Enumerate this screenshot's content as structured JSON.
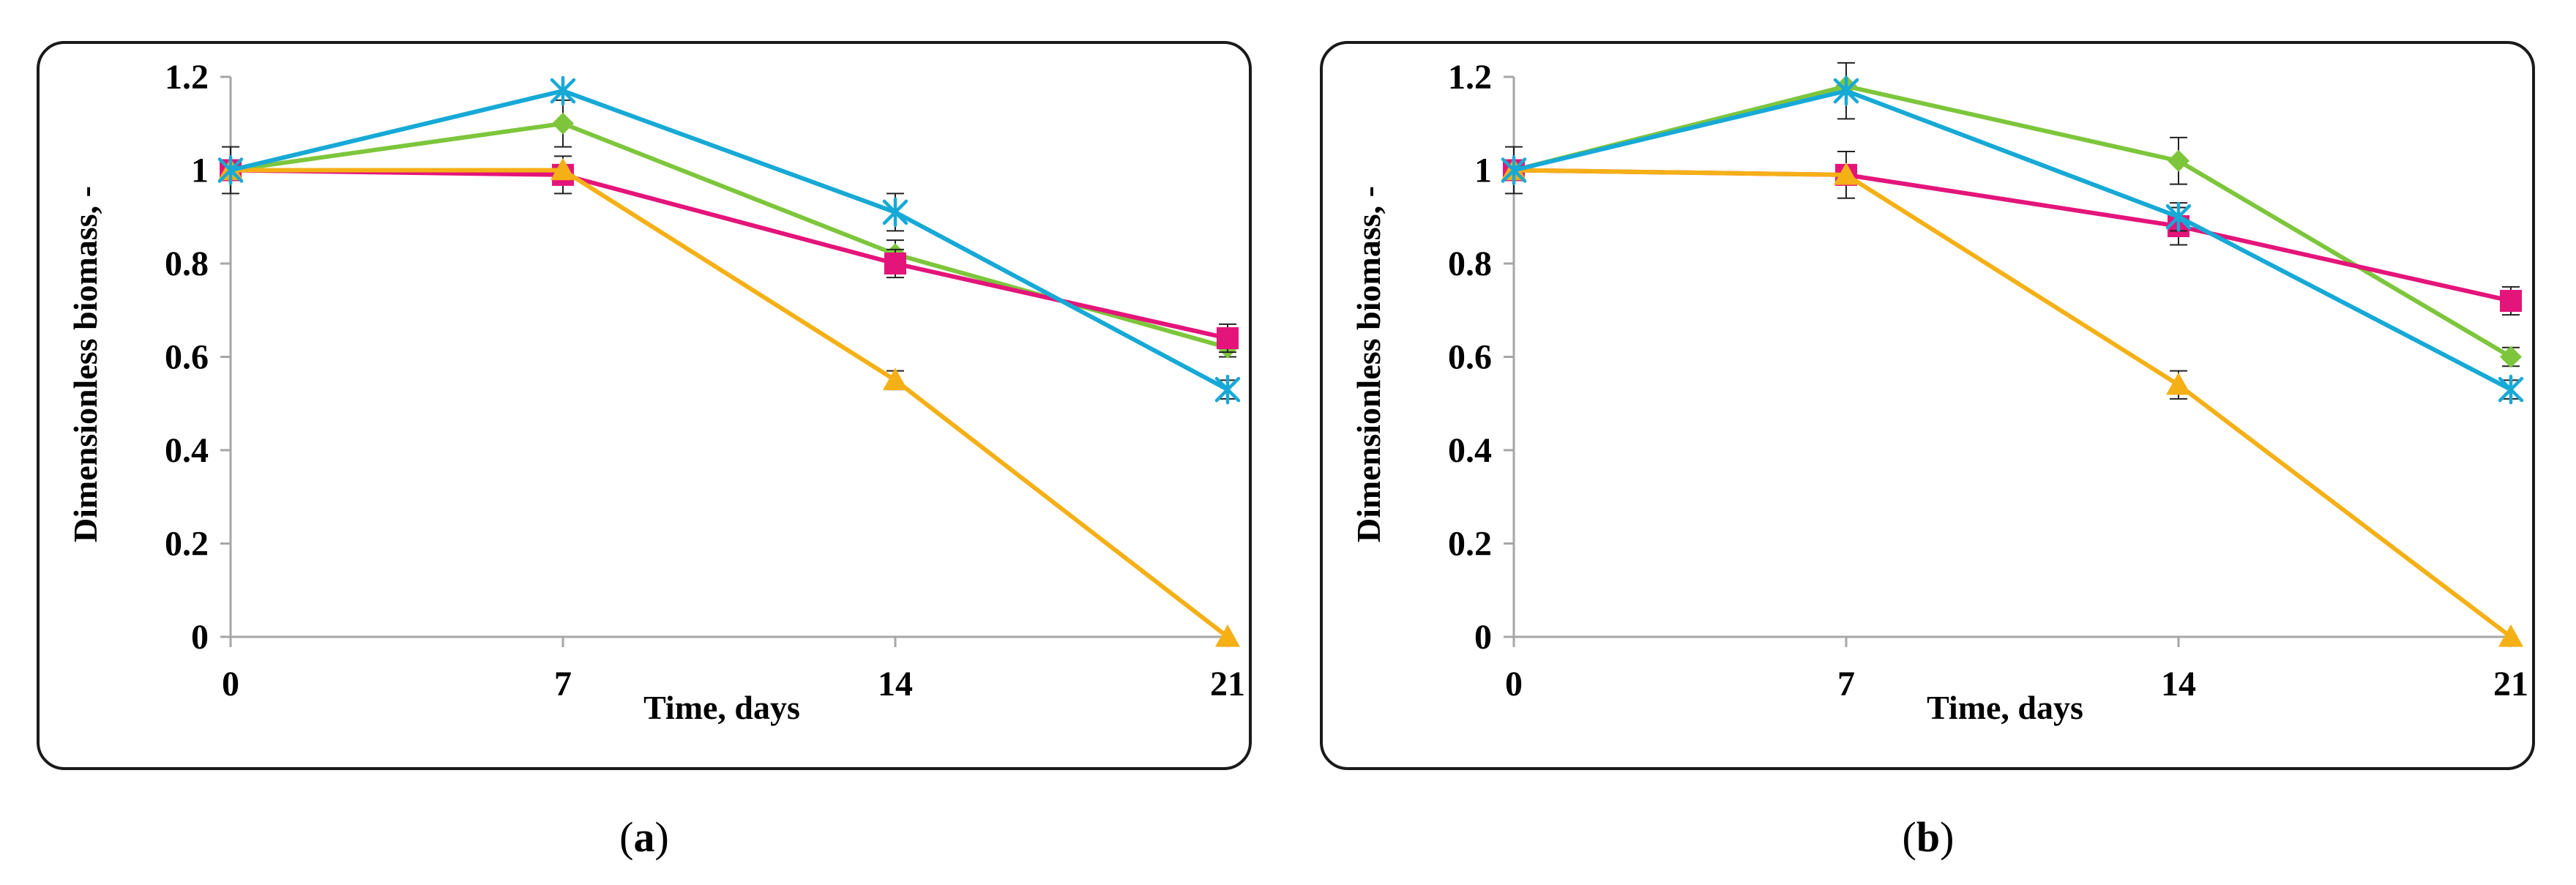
{
  "colors": {
    "green": "#7dc63c",
    "magenta": "#e4157a",
    "yellow": "#f5b016",
    "cyan": "#17a9d6",
    "axis": "#a6a6a6",
    "text": "#000000"
  },
  "chart_data": [
    {
      "type": "line",
      "panel_label": "a",
      "xlabel": "Time, days",
      "ylabel": "Dimensionless biomass, -",
      "x": [
        0,
        7,
        14,
        21
      ],
      "x_tick_labels": [
        "0",
        "7",
        "14",
        "21"
      ],
      "ylim": [
        0,
        1.2
      ],
      "y_ticks": [
        0,
        0.2,
        0.4,
        0.6,
        0.8,
        1,
        1.2
      ],
      "y_tick_labels": [
        "0",
        "0.2",
        "0.4",
        "0.6",
        "0.8",
        "1",
        "1.2"
      ],
      "series": [
        {
          "name": "green",
          "marker": "diamond",
          "color": "#7dc63c",
          "values": [
            1.0,
            1.1,
            0.82,
            0.62
          ],
          "errors": [
            0.0,
            0.05,
            0.03,
            0.02
          ]
        },
        {
          "name": "magenta",
          "marker": "square",
          "color": "#e4157a",
          "values": [
            1.0,
            0.99,
            0.8,
            0.64
          ],
          "errors": [
            0.05,
            0.04,
            0.03,
            0.03
          ]
        },
        {
          "name": "yellow",
          "marker": "triangle",
          "color": "#f5b016",
          "values": [
            1.0,
            1.0,
            0.55,
            0.0
          ],
          "errors": [
            0.0,
            0.0,
            0.02,
            0.0
          ]
        },
        {
          "name": "cyan",
          "marker": "star",
          "color": "#17a9d6",
          "values": [
            1.0,
            1.17,
            0.91,
            0.53
          ],
          "errors": [
            0.0,
            0.0,
            0.04,
            0.02
          ]
        }
      ]
    },
    {
      "type": "line",
      "panel_label": "b",
      "xlabel": "Time, days",
      "ylabel": "Dimensionless biomass, -",
      "x": [
        0,
        7,
        14,
        21
      ],
      "x_tick_labels": [
        "0",
        "7",
        "14",
        "21"
      ],
      "ylim": [
        0,
        1.2
      ],
      "y_ticks": [
        0,
        0.2,
        0.4,
        0.6,
        0.8,
        1,
        1.2
      ],
      "y_tick_labels": [
        "0",
        "0.2",
        "0.4",
        "0.6",
        "0.8",
        "1",
        "1.2"
      ],
      "series": [
        {
          "name": "green",
          "marker": "diamond",
          "color": "#7dc63c",
          "values": [
            1.0,
            1.18,
            1.02,
            0.6
          ],
          "errors": [
            0.0,
            0.0,
            0.05,
            0.02
          ]
        },
        {
          "name": "magenta",
          "marker": "square",
          "color": "#e4157a",
          "values": [
            1.0,
            0.99,
            0.88,
            0.72
          ],
          "errors": [
            0.05,
            0.05,
            0.04,
            0.03
          ]
        },
        {
          "name": "yellow",
          "marker": "triangle",
          "color": "#f5b016",
          "values": [
            1.0,
            0.99,
            0.54,
            0.0
          ],
          "errors": [
            0.0,
            0.0,
            0.03,
            0.0
          ]
        },
        {
          "name": "cyan",
          "marker": "star",
          "color": "#17a9d6",
          "values": [
            1.0,
            1.17,
            0.9,
            0.53
          ],
          "errors": [
            0.0,
            0.06,
            0.03,
            0.02
          ]
        }
      ]
    }
  ],
  "captions": {
    "a": {
      "open": "(",
      "letter": "a",
      "close": ")"
    },
    "b": {
      "open": "(",
      "letter": "b",
      "close": ")"
    }
  }
}
